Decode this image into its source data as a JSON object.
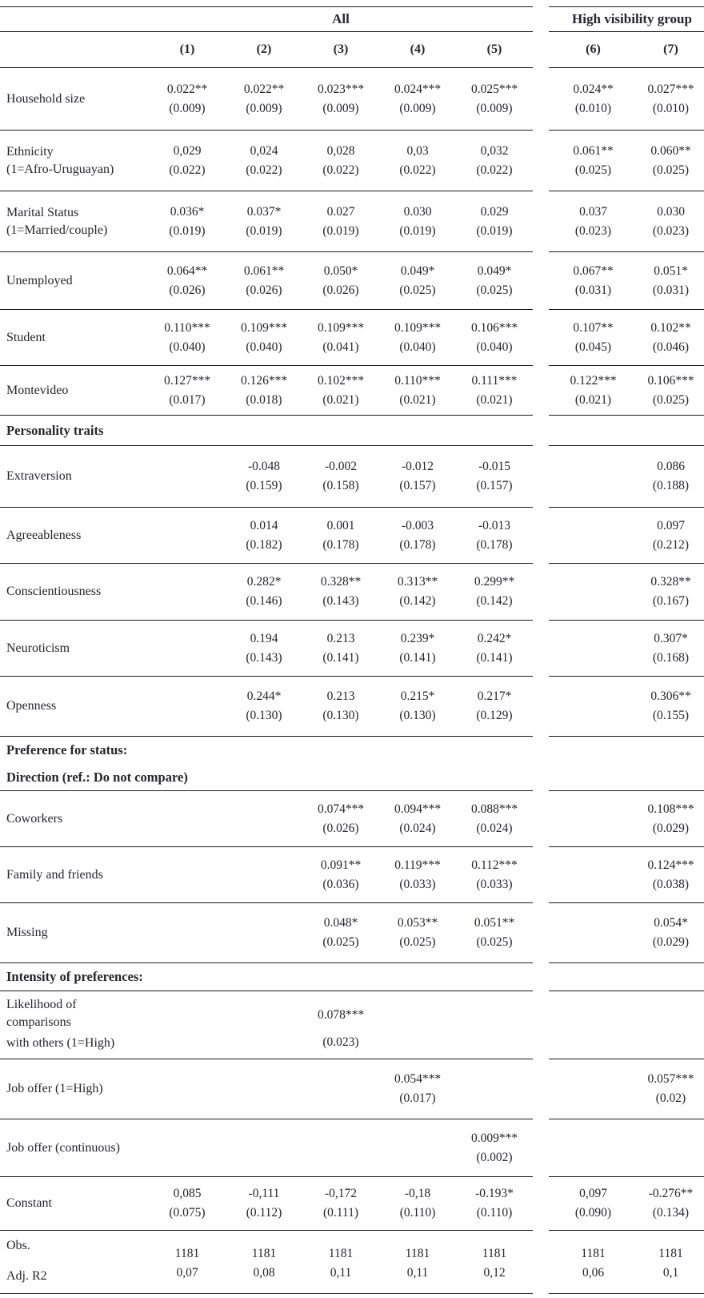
{
  "table": {
    "header": {
      "group_all": "All",
      "group_high": "High visibility group",
      "cols": [
        "(1)",
        "(2)",
        "(3)",
        "(4)",
        "(5)",
        "(6)",
        "(7)"
      ]
    },
    "rows": [
      {
        "type": "coef",
        "label": "Household size",
        "cells": [
          {
            "e": "0.022**",
            "s": "(0.009)"
          },
          {
            "e": "0.022**",
            "s": "(0.009)"
          },
          {
            "e": "0.023***",
            "s": "(0.009)"
          },
          {
            "e": "0.024***",
            "s": "(0.009)"
          },
          {
            "e": "0.025***",
            "s": "(0.009)"
          },
          {
            "e": "0.024**",
            "s": "(0.010)"
          },
          {
            "e": "0.027***",
            "s": "(0.010)"
          }
        ]
      },
      {
        "type": "coef",
        "label": "Ethnicity",
        "label2": "(1=Afro-Uruguayan)",
        "cells": [
          {
            "e": "0,029",
            "s": "(0.022)"
          },
          {
            "e": "0,024",
            "s": "(0.022)"
          },
          {
            "e": "0,028",
            "s": "(0.022)"
          },
          {
            "e": "0,03",
            "s": "(0.022)"
          },
          {
            "e": "0,032",
            "s": "(0.022)"
          },
          {
            "e": "0.061**",
            "s": "(0.025)"
          },
          {
            "e": "0.060**",
            "s": "(0.025)"
          }
        ]
      },
      {
        "type": "coef",
        "label": "Marital Status",
        "label2": "(1=Married/couple)",
        "cells": [
          {
            "e": "0.036*",
            "s": "(0.019)"
          },
          {
            "e": "0.037*",
            "s": "(0.019)"
          },
          {
            "e": "0.027",
            "s": "(0.019)"
          },
          {
            "e": "0.030",
            "s": "(0.019)"
          },
          {
            "e": "0.029",
            "s": "(0.019)"
          },
          {
            "e": "0.037",
            "s": "(0.023)"
          },
          {
            "e": "0.030",
            "s": "(0.023)"
          }
        ]
      },
      {
        "type": "coef",
        "label": "Unemployed",
        "cells": [
          {
            "e": "0.064**",
            "s": "(0.026)"
          },
          {
            "e": "0.061**",
            "s": "(0.026)"
          },
          {
            "e": "0.050*",
            "s": "(0.026)"
          },
          {
            "e": "0.049*",
            "s": "(0.025)"
          },
          {
            "e": "0.049*",
            "s": "(0.025)"
          },
          {
            "e": "0.067**",
            "s": "(0.031)"
          },
          {
            "e": "0.051*",
            "s": "(0.031)"
          }
        ]
      },
      {
        "type": "coef",
        "label": "Student",
        "cells": [
          {
            "e": "0.110***",
            "s": "(0.040)"
          },
          {
            "e": "0.109***",
            "s": "(0.040)"
          },
          {
            "e": "0.109***",
            "s": "(0.041)"
          },
          {
            "e": "0.109***",
            "s": "(0.040)"
          },
          {
            "e": "0.106***",
            "s": "(0.040)"
          },
          {
            "e": "0.107**",
            "s": "(0.045)"
          },
          {
            "e": "0.102**",
            "s": "(0.046)"
          }
        ]
      },
      {
        "type": "coef",
        "label": "Montevideo",
        "cells": [
          {
            "e": "0.127***",
            "s": "(0.017)"
          },
          {
            "e": "0.126***",
            "s": "(0.018)"
          },
          {
            "e": "0.102***",
            "s": "(0.021)"
          },
          {
            "e": "0.110***",
            "s": "(0.021)"
          },
          {
            "e": "0.111***",
            "s": "(0.021)"
          },
          {
            "e": "0.122***",
            "s": "(0.021)"
          },
          {
            "e": "0.106***",
            "s": "(0.025)"
          }
        ]
      },
      {
        "type": "section",
        "label": "Personality traits"
      },
      {
        "type": "coef",
        "label": "Extraversion",
        "cells": [
          null,
          {
            "e": "-0.048",
            "s": "(0.159)"
          },
          {
            "e": "-0.002",
            "s": "(0.158)"
          },
          {
            "e": "-0.012",
            "s": "(0.157)"
          },
          {
            "e": "-0.015",
            "s": "(0.157)"
          },
          null,
          {
            "e": "0.086",
            "s": "(0.188)"
          }
        ]
      },
      {
        "type": "coef",
        "label": "Agreeableness",
        "cells": [
          null,
          {
            "e": "0.014",
            "s": "(0.182)"
          },
          {
            "e": "0.001",
            "s": "(0.178)"
          },
          {
            "e": "-0.003",
            "s": "(0.178)"
          },
          {
            "e": "-0.013",
            "s": "(0.178)"
          },
          null,
          {
            "e": "0.097",
            "s": "(0.212)"
          }
        ]
      },
      {
        "type": "coef",
        "label": "Conscientiousness",
        "cells": [
          null,
          {
            "e": "0.282*",
            "s": "(0.146)"
          },
          {
            "e": "0.328**",
            "s": "(0.143)"
          },
          {
            "e": "0.313**",
            "s": "(0.142)"
          },
          {
            "e": "0.299**",
            "s": "(0.142)"
          },
          null,
          {
            "e": "0.328**",
            "s": "(0.167)"
          }
        ]
      },
      {
        "type": "coef",
        "label": "Neuroticism",
        "cells": [
          null,
          {
            "e": "0.194",
            "s": "(0.143)"
          },
          {
            "e": "0.213",
            "s": "(0.141)"
          },
          {
            "e": "0.239*",
            "s": "(0.141)"
          },
          {
            "e": "0.242*",
            "s": "(0.141)"
          },
          null,
          {
            "e": "0.307*",
            "s": "(0.168)"
          }
        ]
      },
      {
        "type": "coef",
        "label": "Openness",
        "cells": [
          null,
          {
            "e": "0.244*",
            "s": "(0.130)"
          },
          {
            "e": "0.213",
            "s": "(0.130)"
          },
          {
            "e": "0.215*",
            "s": "(0.130)"
          },
          {
            "e": "0.217*",
            "s": "(0.129)"
          },
          null,
          {
            "e": "0.306**",
            "s": "(0.155)"
          }
        ]
      },
      {
        "type": "section",
        "label": "Preference for status:",
        "rule": false
      },
      {
        "type": "section",
        "label": "Direction (ref.: Do not compare)"
      },
      {
        "type": "coef",
        "label": "Coworkers",
        "cells": [
          null,
          null,
          {
            "e": "0.074***",
            "s": "(0.026)"
          },
          {
            "e": "0.094***",
            "s": "(0.024)"
          },
          {
            "e": "0.088***",
            "s": "(0.024)"
          },
          null,
          {
            "e": "0.108***",
            "s": "(0.029)"
          }
        ]
      },
      {
        "type": "coef",
        "label": "Family and friends",
        "cells": [
          null,
          null,
          {
            "e": "0.091**",
            "s": "(0.036)"
          },
          {
            "e": "0.119***",
            "s": "(0.033)"
          },
          {
            "e": "0.112***",
            "s": "(0.033)"
          },
          null,
          {
            "e": "0.124***",
            "s": "(0.038)"
          }
        ]
      },
      {
        "type": "coef",
        "label": "Missing",
        "cells": [
          null,
          null,
          {
            "e": "0.048*",
            "s": "(0.025)"
          },
          {
            "e": "0.053**",
            "s": "(0.025)"
          },
          {
            "e": "0.051**",
            "s": "(0.025)"
          },
          null,
          {
            "e": "0.054*",
            "s": "(0.029)"
          }
        ]
      },
      {
        "type": "section",
        "label": "Intensity of preferences:"
      },
      {
        "type": "spread",
        "label_lines": [
          "Likelihood of",
          "comparisons",
          "with others (1=High)"
        ],
        "cells": [
          null,
          null,
          {
            "e": "0.078***",
            "s": "(0.023)"
          },
          null,
          null,
          null,
          null
        ]
      },
      {
        "type": "coef",
        "label": "Job offer (1=High)",
        "cells": [
          null,
          null,
          null,
          {
            "e": "0.054***",
            "s": "(0.017)"
          },
          null,
          null,
          {
            "e": "0.057***",
            "s": "(0.02)"
          }
        ]
      },
      {
        "type": "coef",
        "label": "Job offer (continuous)",
        "cells": [
          null,
          null,
          null,
          null,
          {
            "e": "0.009***",
            "s": "(0.002)"
          },
          null,
          null
        ]
      },
      {
        "type": "coef",
        "label": "Constant",
        "cells": [
          {
            "e": "0,085",
            "s": "(0.075)"
          },
          {
            "e": "-0,111",
            "s": "(0.112)"
          },
          {
            "e": "-0,172",
            "s": "(0.111)"
          },
          {
            "e": "-0,18",
            "s": "(0.110)"
          },
          {
            "e": "-0.193*",
            "s": "(0.110)"
          },
          {
            "e": "0,097",
            "s": "(0.090)"
          },
          {
            "e": "-0.276**",
            "s": "(0.134)"
          }
        ]
      },
      {
        "type": "stats",
        "labels": [
          "Obs.",
          "Adj. R2"
        ],
        "obs": [
          "1181",
          "1181",
          "1181",
          "1181",
          "1181",
          "1181",
          "1181"
        ],
        "adj": [
          "0,07",
          "0,08",
          "0,11",
          "0,11",
          "0,12",
          "0,06",
          "0,1"
        ]
      }
    ]
  }
}
